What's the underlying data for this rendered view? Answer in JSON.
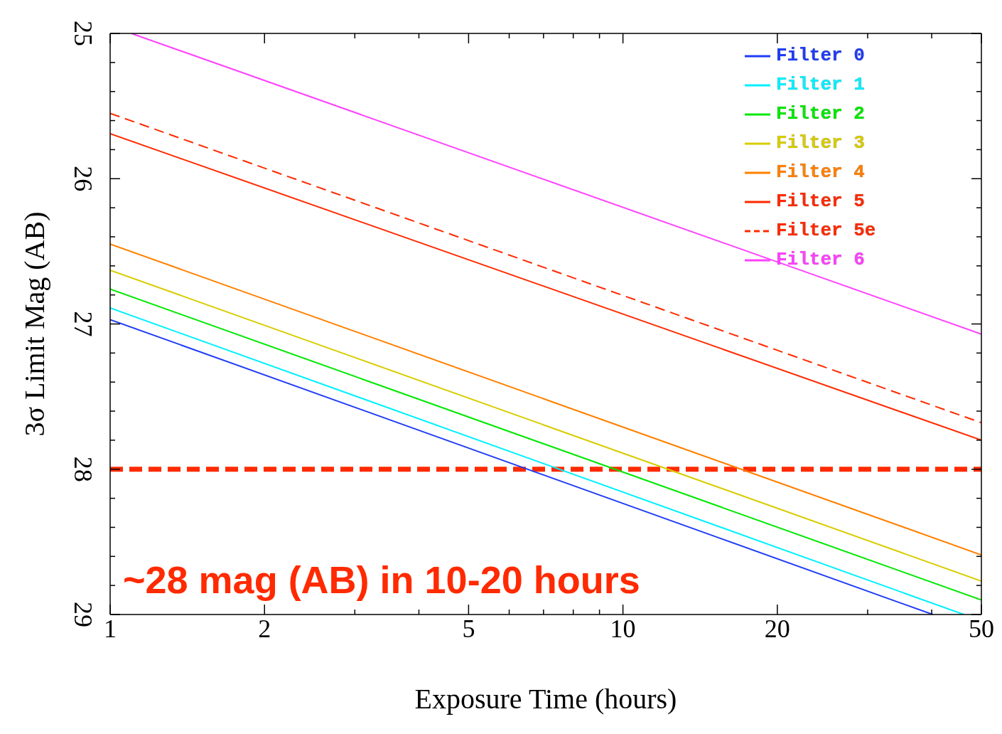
{
  "chart_data": {
    "type": "line",
    "xlabel": "Exposure Time (hours)",
    "ylabel": "3σ Limit Mag (AB)",
    "log": "x",
    "xlim": [
      1,
      50
    ],
    "ylim": [
      29,
      25
    ],
    "xticks": [
      1,
      2,
      5,
      10,
      20,
      50,
      {
        "value": 3,
        "label": null
      },
      {
        "value": 4,
        "label": null
      },
      {
        "value": 6,
        "label": null
      },
      {
        "value": 7,
        "label": null
      },
      {
        "value": 8,
        "label": null
      },
      {
        "value": 9,
        "label": null
      },
      {
        "value": 30,
        "label": null
      },
      {
        "value": 40,
        "label": null
      }
    ],
    "yticks": [
      25,
      26,
      27,
      28,
      29,
      {
        "value": 25.2,
        "label": null
      },
      {
        "value": 25.4,
        "label": null
      },
      {
        "value": 25.6,
        "label": null
      },
      {
        "value": 25.8,
        "label": null
      },
      {
        "value": 26.2,
        "label": null
      },
      {
        "value": 26.4,
        "label": null
      },
      {
        "value": 26.6,
        "label": null
      },
      {
        "value": 26.8,
        "label": null
      },
      {
        "value": 27.2,
        "label": null
      },
      {
        "value": 27.4,
        "label": null
      },
      {
        "value": 27.6,
        "label": null
      },
      {
        "value": 27.8,
        "label": null
      },
      {
        "value": 28.2,
        "label": null
      },
      {
        "value": 28.4,
        "label": null
      },
      {
        "value": 28.6,
        "label": null
      },
      {
        "value": 28.8,
        "label": null
      }
    ],
    "legend": "top right",
    "grid": false,
    "marker": "none",
    "series": [
      {
        "name": "Filter 0",
        "color": "#1f3cf5",
        "x": [
          1,
          40.2
        ],
        "values": [
          26.97,
          29
        ]
      },
      {
        "name": "Filter 1",
        "color": "#00f0ff",
        "x": [
          1,
          46.2
        ],
        "values": [
          26.89,
          29
        ]
      },
      {
        "name": "Filter 2",
        "color": "#00e800",
        "x": [
          1,
          50
        ],
        "values": [
          26.76,
          28.9
        ]
      },
      {
        "name": "Filter 3",
        "color": "#d8cc00",
        "x": [
          1,
          50
        ],
        "values": [
          26.63,
          28.77
        ]
      },
      {
        "name": "Filter 4",
        "color": "#ff8000",
        "x": [
          1,
          50
        ],
        "values": [
          26.45,
          28.59
        ]
      },
      {
        "name": "Filter 5",
        "color": "#ff2a00",
        "x": [
          1,
          50
        ],
        "values": [
          25.69,
          27.8
        ]
      },
      {
        "name": "Filter 5e",
        "color": "#ff2a00",
        "line_style": "dashed",
        "x": [
          1,
          50
        ],
        "values": [
          25.55,
          27.68
        ]
      },
      {
        "name": "Filter 6",
        "color": "#ff40ff",
        "x": [
          1.1,
          50
        ],
        "values": [
          25,
          27.07
        ]
      }
    ],
    "ref_lines": [
      {
        "axis": "y",
        "value": 28,
        "color": "#ff2a00",
        "line_style": "dashed"
      }
    ],
    "annotations": [
      "~28 mag (AB) in 10-20 hours"
    ]
  }
}
